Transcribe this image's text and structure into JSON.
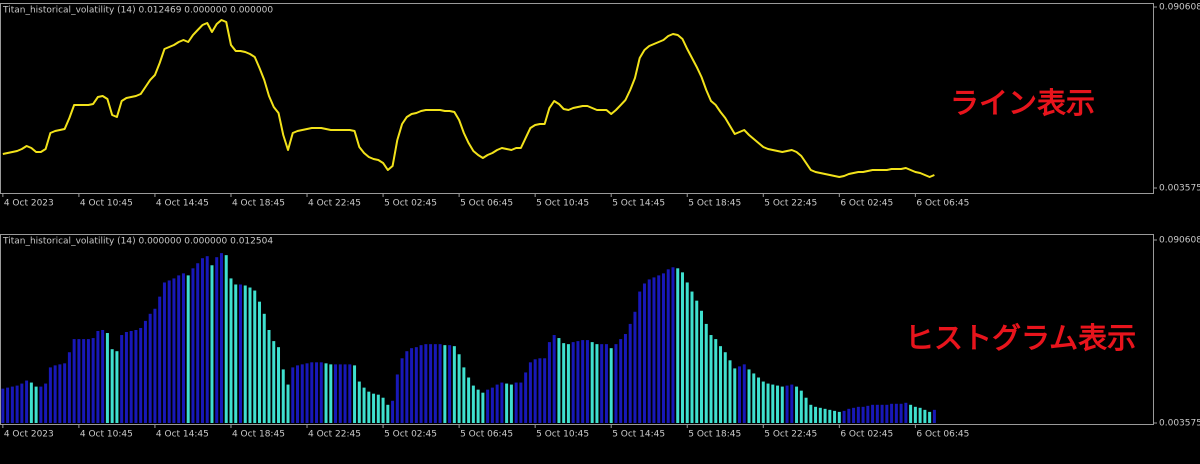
{
  "chart_data": [
    {
      "type": "line",
      "label": "Titan_historical_volatility (14) 0.012469 0.000000 0.000000",
      "annotation": "ライン表示",
      "color": "#f2e21a",
      "values": [
        0.01992,
        0.0204,
        0.02089,
        0.02137,
        0.02233,
        0.02377,
        0.02281,
        0.02089,
        0.02089,
        0.02233,
        0.03002,
        0.03098,
        0.03146,
        0.03195,
        0.03723,
        0.04348,
        0.04348,
        0.04348,
        0.04348,
        0.04397,
        0.04733,
        0.04781,
        0.04637,
        0.03868,
        0.03772,
        0.04541,
        0.04685,
        0.04733,
        0.04781,
        0.04877,
        0.05214,
        0.05551,
        0.05791,
        0.06368,
        0.07041,
        0.07137,
        0.07234,
        0.07378,
        0.07474,
        0.07378,
        0.07714,
        0.07955,
        0.08195,
        0.08291,
        0.07859,
        0.08243,
        0.08436,
        0.0834,
        0.07234,
        0.06945,
        0.06945,
        0.06897,
        0.06801,
        0.06657,
        0.06128,
        0.05551,
        0.04781,
        0.04252,
        0.03964,
        0.02906,
        0.02185,
        0.03002,
        0.03098,
        0.03146,
        0.03195,
        0.03243,
        0.03243,
        0.03243,
        0.03195,
        0.03146,
        0.03146,
        0.03146,
        0.03146,
        0.03146,
        0.03098,
        0.02329,
        0.0204,
        0.01848,
        0.01752,
        0.01704,
        0.0156,
        0.01223,
        0.01415,
        0.02666,
        0.03435,
        0.03772,
        0.03916,
        0.03964,
        0.0406,
        0.04108,
        0.04108,
        0.04108,
        0.04108,
        0.0406,
        0.0406,
        0.04012,
        0.03627,
        0.03002,
        0.02521,
        0.02137,
        0.01944,
        0.018,
        0.01944,
        0.0204,
        0.02185,
        0.02281,
        0.02233,
        0.02185,
        0.02281,
        0.02281,
        0.02762,
        0.03243,
        0.03387,
        0.03435,
        0.03435,
        0.04204,
        0.04541,
        0.04397,
        0.04156,
        0.04108,
        0.04204,
        0.04252,
        0.043,
        0.043,
        0.04204,
        0.04108,
        0.04108,
        0.04108,
        0.03916,
        0.04108,
        0.04348,
        0.04589,
        0.0507,
        0.05647,
        0.06609,
        0.06993,
        0.07186,
        0.07282,
        0.07378,
        0.07474,
        0.07666,
        0.07763,
        0.07714,
        0.07522,
        0.07041,
        0.06609,
        0.06176,
        0.05695,
        0.0507,
        0.04541,
        0.04348,
        0.04012,
        0.03723,
        0.03339,
        0.02954,
        0.0305,
        0.03146,
        0.02906,
        0.02714,
        0.02521,
        0.02329,
        0.02233,
        0.02185,
        0.02137,
        0.02089,
        0.02137,
        0.02185,
        0.02089,
        0.01896,
        0.0156,
        0.01223,
        0.01127,
        0.01079,
        0.01031,
        0.00983,
        0.00935,
        0.00886,
        0.00935,
        0.01031,
        0.01079,
        0.01127,
        0.01127,
        0.01175,
        0.01223,
        0.01223,
        0.01223,
        0.01223,
        0.01271,
        0.01271,
        0.01271,
        0.01319,
        0.01223,
        0.01127,
        0.01079,
        0.00983,
        0.00886,
        0.00983
      ],
      "ylim": [
        0.003575,
        0.090608
      ],
      "yticks": [
        0.090608,
        0.003575
      ],
      "xlim": [
        -0.6,
        242
      ],
      "xticks": [
        {
          "value": 0,
          "label": "4 Oct 2023"
        },
        {
          "value": 16,
          "label": "4 Oct 10:45"
        },
        {
          "value": 32,
          "label": "4 Oct 14:45"
        },
        {
          "value": 48,
          "label": "4 Oct 18:45"
        },
        {
          "value": 64,
          "label": "4 Oct 22:45"
        },
        {
          "value": 80,
          "label": "5 Oct 02:45"
        },
        {
          "value": 96,
          "label": "5 Oct 06:45"
        },
        {
          "value": 112,
          "label": "5 Oct 10:45"
        },
        {
          "value": 128,
          "label": "5 Oct 14:45"
        },
        {
          "value": 144,
          "label": "5 Oct 18:45"
        },
        {
          "value": 160,
          "label": "5 Oct 22:45"
        },
        {
          "value": 176,
          "label": "6 Oct 02:45"
        },
        {
          "value": 192,
          "label": "6 Oct 06:45"
        }
      ]
    },
    {
      "type": "bar",
      "label": "Titan_historical_volatility (14) 0.000000 0.000000 0.012504",
      "annotation": "ヒストグラム表示",
      "up_color": "#1818b8",
      "down_color": "#3fe0cf",
      "values": [
        0.01992,
        0.0204,
        0.02089,
        0.02137,
        0.02233,
        0.02377,
        0.02281,
        0.02089,
        0.02089,
        0.02233,
        0.03002,
        0.03098,
        0.03146,
        0.03195,
        0.03723,
        0.04348,
        0.04348,
        0.04348,
        0.04348,
        0.04397,
        0.04733,
        0.04781,
        0.04637,
        0.03868,
        0.03772,
        0.04541,
        0.04685,
        0.04733,
        0.04781,
        0.04877,
        0.05214,
        0.05551,
        0.05791,
        0.06368,
        0.07041,
        0.07137,
        0.07234,
        0.07378,
        0.07474,
        0.07378,
        0.07714,
        0.07955,
        0.08195,
        0.08291,
        0.07859,
        0.08243,
        0.08436,
        0.0834,
        0.07234,
        0.06945,
        0.06945,
        0.06897,
        0.06801,
        0.06657,
        0.06128,
        0.05551,
        0.04781,
        0.04252,
        0.03964,
        0.02906,
        0.02185,
        0.03002,
        0.03098,
        0.03146,
        0.03195,
        0.03243,
        0.03243,
        0.03243,
        0.03195,
        0.03146,
        0.03146,
        0.03146,
        0.03146,
        0.03146,
        0.03098,
        0.02329,
        0.0204,
        0.01848,
        0.01752,
        0.01704,
        0.0156,
        0.01223,
        0.01415,
        0.02666,
        0.03435,
        0.03772,
        0.03916,
        0.03964,
        0.0406,
        0.04108,
        0.04108,
        0.04108,
        0.04108,
        0.0406,
        0.0406,
        0.04012,
        0.03627,
        0.03002,
        0.02521,
        0.02137,
        0.01944,
        0.018,
        0.01944,
        0.0204,
        0.02185,
        0.02281,
        0.02233,
        0.02185,
        0.02281,
        0.02281,
        0.02762,
        0.03243,
        0.03387,
        0.03435,
        0.03435,
        0.04204,
        0.04541,
        0.04397,
        0.04156,
        0.04108,
        0.04204,
        0.04252,
        0.043,
        0.043,
        0.04204,
        0.04108,
        0.04108,
        0.04108,
        0.03916,
        0.04108,
        0.04348,
        0.04589,
        0.0507,
        0.05647,
        0.06609,
        0.06993,
        0.07186,
        0.07282,
        0.07378,
        0.07474,
        0.07666,
        0.07763,
        0.07714,
        0.07522,
        0.07041,
        0.06609,
        0.06176,
        0.05695,
        0.0507,
        0.04541,
        0.04348,
        0.04012,
        0.03723,
        0.03339,
        0.02954,
        0.0305,
        0.03146,
        0.02906,
        0.02714,
        0.02521,
        0.02329,
        0.02233,
        0.02185,
        0.02137,
        0.02089,
        0.02137,
        0.02185,
        0.02089,
        0.01896,
        0.0156,
        0.01223,
        0.01127,
        0.01079,
        0.01031,
        0.00983,
        0.00935,
        0.00886,
        0.00935,
        0.01031,
        0.01079,
        0.01127,
        0.01127,
        0.01175,
        0.01223,
        0.01223,
        0.01223,
        0.01223,
        0.01271,
        0.01271,
        0.01271,
        0.01319,
        0.01223,
        0.01127,
        0.01079,
        0.00983,
        0.00886,
        0.00983
      ],
      "ylim": [
        0.003575,
        0.090608
      ],
      "yticks": [
        0.090608,
        0.003575
      ],
      "xlim": [
        -0.6,
        242
      ],
      "xticks": [
        {
          "value": 0,
          "label": "4 Oct 2023"
        },
        {
          "value": 16,
          "label": "4 Oct 10:45"
        },
        {
          "value": 32,
          "label": "4 Oct 14:45"
        },
        {
          "value": 48,
          "label": "4 Oct 18:45"
        },
        {
          "value": 64,
          "label": "4 Oct 22:45"
        },
        {
          "value": 80,
          "label": "5 Oct 02:45"
        },
        {
          "value": 96,
          "label": "5 Oct 06:45"
        },
        {
          "value": 112,
          "label": "5 Oct 10:45"
        },
        {
          "value": 128,
          "label": "5 Oct 14:45"
        },
        {
          "value": 144,
          "label": "5 Oct 18:45"
        },
        {
          "value": 160,
          "label": "5 Oct 22:45"
        },
        {
          "value": 176,
          "label": "6 Oct 02:45"
        },
        {
          "value": 192,
          "label": "6 Oct 06:45"
        }
      ]
    }
  ]
}
